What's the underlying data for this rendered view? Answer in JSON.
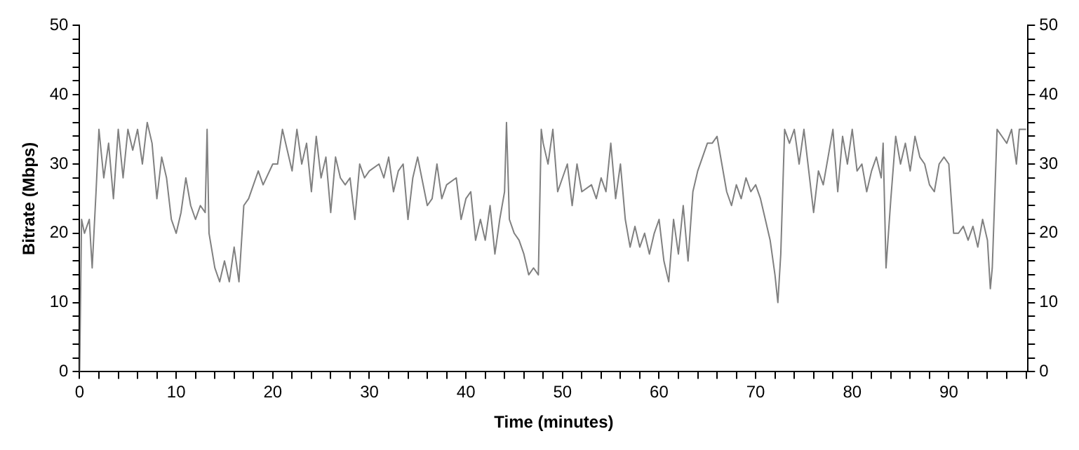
{
  "chart_data": {
    "type": "line",
    "xlabel": "Time (minutes)",
    "ylabel": "Bitrate (Mbps)",
    "xlim": [
      0,
      98.2
    ],
    "xticks": [
      0,
      {
        "value": 2,
        "label": null
      },
      {
        "value": 4,
        "label": null
      },
      {
        "value": 6,
        "label": null
      },
      {
        "value": 8,
        "label": null
      },
      10,
      {
        "value": 12,
        "label": null
      },
      {
        "value": 14,
        "label": null
      },
      {
        "value": 16,
        "label": null
      },
      {
        "value": 18,
        "label": null
      },
      20,
      {
        "value": 22,
        "label": null
      },
      {
        "value": 24,
        "label": null
      },
      {
        "value": 26,
        "label": null
      },
      {
        "value": 28,
        "label": null
      },
      30,
      {
        "value": 32,
        "label": null
      },
      {
        "value": 34,
        "label": null
      },
      {
        "value": 36,
        "label": null
      },
      {
        "value": 38,
        "label": null
      },
      40,
      {
        "value": 42,
        "label": null
      },
      {
        "value": 44,
        "label": null
      },
      {
        "value": 46,
        "label": null
      },
      {
        "value": 48,
        "label": null
      },
      50,
      {
        "value": 52,
        "label": null
      },
      {
        "value": 54,
        "label": null
      },
      {
        "value": 56,
        "label": null
      },
      {
        "value": 58,
        "label": null
      },
      60,
      {
        "value": 62,
        "label": null
      },
      {
        "value": 64,
        "label": null
      },
      {
        "value": 66,
        "label": null
      },
      {
        "value": 68,
        "label": null
      },
      70,
      {
        "value": 72,
        "label": null
      },
      {
        "value": 74,
        "label": null
      },
      {
        "value": 76,
        "label": null
      },
      {
        "value": 78,
        "label": null
      },
      80,
      {
        "value": 82,
        "label": null
      },
      {
        "value": 84,
        "label": null
      },
      {
        "value": 86,
        "label": null
      },
      {
        "value": 88,
        "label": null
      },
      90,
      {
        "value": 92,
        "label": null
      },
      {
        "value": 94,
        "label": null
      },
      {
        "value": 96,
        "label": null
      },
      {
        "value": 98,
        "label": null
      }
    ],
    "ylim": [
      0,
      50
    ],
    "yticks": [
      0,
      {
        "value": 2,
        "label": null
      },
      {
        "value": 4,
        "label": null
      },
      {
        "value": 6,
        "label": null
      },
      {
        "value": 8,
        "label": null
      },
      10,
      {
        "value": 12,
        "label": null
      },
      {
        "value": 14,
        "label": null
      },
      {
        "value": 16,
        "label": null
      },
      {
        "value": 18,
        "label": null
      },
      20,
      {
        "value": 22,
        "label": null
      },
      {
        "value": 24,
        "label": null
      },
      {
        "value": 26,
        "label": null
      },
      {
        "value": 28,
        "label": null
      },
      30,
      {
        "value": 32,
        "label": null
      },
      {
        "value": 34,
        "label": null
      },
      {
        "value": 36,
        "label": null
      },
      {
        "value": 38,
        "label": null
      },
      40,
      {
        "value": 42,
        "label": null
      },
      {
        "value": 44,
        "label": null
      },
      {
        "value": 46,
        "label": null
      },
      {
        "value": 48,
        "label": null
      },
      50
    ],
    "y2lim": [
      0,
      50
    ],
    "y2ticks": [
      0,
      {
        "value": 2,
        "label": null
      },
      {
        "value": 4,
        "label": null
      },
      {
        "value": 6,
        "label": null
      },
      {
        "value": 8,
        "label": null
      },
      10,
      {
        "value": 12,
        "label": null
      },
      {
        "value": 14,
        "label": null
      },
      {
        "value": 16,
        "label": null
      },
      {
        "value": 18,
        "label": null
      },
      20,
      {
        "value": 22,
        "label": null
      },
      {
        "value": 24,
        "label": null
      },
      {
        "value": 26,
        "label": null
      },
      {
        "value": 28,
        "label": null
      },
      30,
      {
        "value": 32,
        "label": null
      },
      {
        "value": 34,
        "label": null
      },
      {
        "value": 36,
        "label": null
      },
      {
        "value": 38,
        "label": null
      },
      40,
      {
        "value": 42,
        "label": null
      },
      {
        "value": 44,
        "label": null
      },
      {
        "value": 46,
        "label": null
      },
      {
        "value": 48,
        "label": null
      },
      50
    ],
    "grid": false,
    "legend": false,
    "marker": "none",
    "line_style": "solid",
    "series": [
      {
        "color": "#808080",
        "x": [
          0,
          0.2,
          0.5,
          1,
          1.3,
          1.7,
          2,
          2.5,
          3,
          3.5,
          4,
          4.5,
          5,
          5.5,
          6,
          6.5,
          7,
          7.5,
          8,
          8.5,
          9,
          9.5,
          10,
          10.5,
          11,
          11.5,
          12,
          12.5,
          13,
          13.2,
          13.4,
          14,
          14.5,
          15,
          15.5,
          16,
          16.5,
          17,
          17.5,
          18,
          18.5,
          19,
          20,
          20.5,
          21,
          21.5,
          22,
          22.5,
          23,
          23.5,
          24,
          24.5,
          25,
          25.5,
          26,
          26.5,
          27,
          27.5,
          28,
          28.5,
          29,
          29.5,
          30,
          31,
          31.5,
          32,
          32.5,
          33,
          33.5,
          34,
          34.5,
          35,
          36,
          36.5,
          37,
          37.5,
          38,
          39,
          39.5,
          40,
          40.5,
          41,
          41.5,
          42,
          42.5,
          43,
          43.5,
          44,
          44.2,
          44.5,
          45,
          45.5,
          46,
          46.5,
          47,
          47.5,
          47.8,
          48,
          48.5,
          49,
          49.5,
          50,
          50.5,
          51,
          51.5,
          52,
          53,
          53.5,
          54,
          54.5,
          55,
          55.5,
          56,
          56.5,
          57,
          57.5,
          58,
          58.5,
          59,
          59.5,
          60,
          60.5,
          61,
          61.5,
          62,
          62.5,
          63,
          63.5,
          64,
          64.5,
          65,
          65.5,
          66,
          66.5,
          67,
          67.5,
          68,
          68.5,
          69,
          69.5,
          70,
          70.5,
          71,
          71.5,
          72,
          72.3,
          72.6,
          73,
          73.5,
          74,
          74.5,
          75,
          75.5,
          76,
          76.5,
          77,
          77.5,
          78,
          78.5,
          79,
          79.5,
          80,
          80.5,
          81,
          81.5,
          82,
          82.5,
          83,
          83.2,
          83.5,
          84,
          84.5,
          85,
          85.5,
          86,
          86.5,
          87,
          87.5,
          88,
          88.5,
          89,
          89.5,
          90,
          90.5,
          91,
          91.5,
          92,
          92.5,
          93,
          93.5,
          94,
          94.3,
          94.5,
          95,
          95.5,
          96,
          96.5,
          97,
          97.3,
          98
        ],
        "values": [
          0,
          22,
          20,
          22,
          15,
          26,
          35,
          28,
          33,
          25,
          35,
          28,
          35,
          32,
          35,
          30,
          36,
          33,
          25,
          31,
          28,
          22,
          20,
          23,
          28,
          24,
          22,
          24,
          23,
          35,
          20,
          15,
          13,
          16,
          13,
          18,
          13,
          24,
          25,
          27,
          29,
          27,
          30,
          30,
          35,
          32,
          29,
          35,
          30,
          33,
          26,
          34,
          28,
          31,
          23,
          31,
          28,
          27,
          28,
          22,
          30,
          28,
          29,
          30,
          28,
          31,
          26,
          29,
          30,
          22,
          28,
          31,
          24,
          25,
          30,
          25,
          27,
          28,
          22,
          25,
          26,
          19,
          22,
          19,
          24,
          17,
          22,
          26,
          36,
          22,
          20,
          19,
          17,
          14,
          15,
          14,
          35,
          33,
          30,
          35,
          26,
          28,
          30,
          24,
          30,
          26,
          27,
          25,
          28,
          26,
          33,
          25,
          30,
          22,
          18,
          21,
          18,
          20,
          17,
          20,
          22,
          16,
          13,
          22,
          17,
          24,
          16,
          26,
          29,
          31,
          33,
          33,
          34,
          30,
          26,
          24,
          27,
          25,
          28,
          26,
          27,
          25,
          22,
          19,
          14,
          10,
          17,
          35,
          33,
          35,
          30,
          35,
          29,
          23,
          29,
          27,
          31,
          35,
          26,
          34,
          30,
          35,
          29,
          30,
          26,
          29,
          31,
          28,
          33,
          15,
          25,
          34,
          30,
          33,
          29,
          34,
          31,
          30,
          27,
          26,
          30,
          31,
          30,
          20,
          20,
          21,
          19,
          21,
          18,
          22,
          19,
          12,
          15,
          35,
          34,
          33,
          35,
          30,
          35,
          35
        ]
      }
    ]
  }
}
